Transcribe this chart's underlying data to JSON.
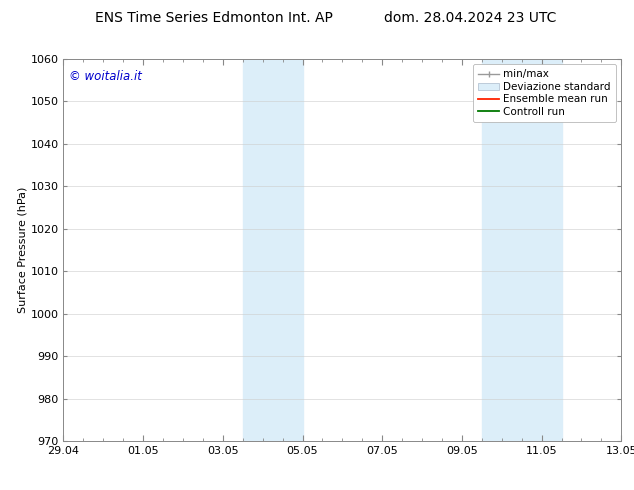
{
  "title_left": "ENS Time Series Edmonton Int. AP",
  "title_right": "dom. 28.04.2024 23 UTC",
  "ylabel": "Surface Pressure (hPa)",
  "ylim": [
    970,
    1060
  ],
  "yticks": [
    970,
    980,
    990,
    1000,
    1010,
    1020,
    1030,
    1040,
    1050,
    1060
  ],
  "xtick_labels": [
    "29.04",
    "01.05",
    "03.05",
    "05.05",
    "07.05",
    "09.05",
    "11.05",
    "13.05"
  ],
  "xtick_positions": [
    0,
    2,
    4,
    6,
    8,
    10,
    12,
    14
  ],
  "background_color": "#ffffff",
  "plot_bg_color": "#ffffff",
  "shaded_bands": [
    {
      "x_start": 4.5,
      "x_end": 6.0
    },
    {
      "x_start": 10.5,
      "x_end": 12.5
    }
  ],
  "shaded_color": "#dceef9",
  "watermark_text": "© woitalia.it",
  "watermark_color": "#0000cc",
  "grid_color": "#cccccc",
  "title_fontsize": 10,
  "axis_fontsize": 8,
  "tick_fontsize": 8,
  "legend_fontsize": 7.5
}
